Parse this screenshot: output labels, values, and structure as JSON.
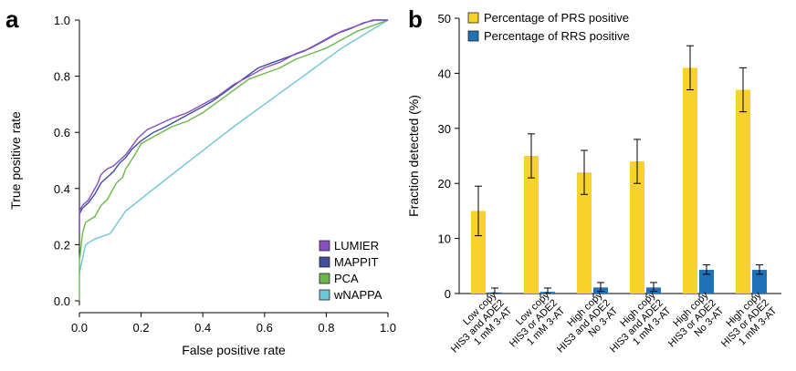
{
  "panels": {
    "a": {
      "letter": "a"
    },
    "b": {
      "letter": "b"
    }
  },
  "chart_data": [
    {
      "type": "line",
      "panel": "a",
      "xlabel": "False positive rate",
      "ylabel": "True positive rate",
      "xlim": [
        0,
        1
      ],
      "ylim": [
        0,
        1
      ],
      "xticks": [
        "0.0",
        "0.2",
        "0.4",
        "0.6",
        "0.8",
        "1.0"
      ],
      "yticks": [
        "0.0",
        "0.2",
        "0.4",
        "0.6",
        "0.8",
        "1.0"
      ],
      "grid": false,
      "legend_position": "bottom-right",
      "series": [
        {
          "name": "LUMIER",
          "color": "#8a4fc0",
          "points": [
            [
              0,
              0.24
            ],
            [
              0,
              0.32
            ],
            [
              0.01,
              0.34
            ],
            [
              0.02,
              0.35
            ],
            [
              0.03,
              0.36
            ],
            [
              0.04,
              0.38
            ],
            [
              0.05,
              0.4
            ],
            [
              0.06,
              0.42
            ],
            [
              0.07,
              0.45
            ],
            [
              0.09,
              0.47
            ],
            [
              0.11,
              0.48
            ],
            [
              0.13,
              0.5
            ],
            [
              0.15,
              0.52
            ],
            [
              0.17,
              0.55
            ],
            [
              0.19,
              0.58
            ],
            [
              0.22,
              0.61
            ],
            [
              0.26,
              0.63
            ],
            [
              0.3,
              0.65
            ],
            [
              0.35,
              0.67
            ],
            [
              0.4,
              0.7
            ],
            [
              0.45,
              0.73
            ],
            [
              0.5,
              0.77
            ],
            [
              0.55,
              0.8
            ],
            [
              0.6,
              0.83
            ],
            [
              0.65,
              0.85
            ],
            [
              0.7,
              0.88
            ],
            [
              0.75,
              0.9
            ],
            [
              0.8,
              0.93
            ],
            [
              0.85,
              0.96
            ],
            [
              0.9,
              0.98
            ],
            [
              0.95,
              1.0
            ],
            [
              1.0,
              1.0
            ]
          ]
        },
        {
          "name": "MAPPIT",
          "color": "#3f4e9e",
          "points": [
            [
              0,
              0.24
            ],
            [
              0,
              0.31
            ],
            [
              0.01,
              0.33
            ],
            [
              0.03,
              0.35
            ],
            [
              0.05,
              0.38
            ],
            [
              0.07,
              0.42
            ],
            [
              0.09,
              0.44
            ],
            [
              0.11,
              0.46
            ],
            [
              0.13,
              0.49
            ],
            [
              0.15,
              0.51
            ],
            [
              0.17,
              0.54
            ],
            [
              0.2,
              0.57
            ],
            [
              0.24,
              0.6
            ],
            [
              0.28,
              0.62
            ],
            [
              0.33,
              0.65
            ],
            [
              0.38,
              0.68
            ],
            [
              0.43,
              0.71
            ],
            [
              0.48,
              0.75
            ],
            [
              0.53,
              0.79
            ],
            [
              0.58,
              0.83
            ],
            [
              0.63,
              0.85
            ],
            [
              0.68,
              0.87
            ],
            [
              0.73,
              0.89
            ],
            [
              0.78,
              0.92
            ],
            [
              0.83,
              0.95
            ],
            [
              0.88,
              0.97
            ],
            [
              0.92,
              0.99
            ],
            [
              0.96,
              1.0
            ],
            [
              1.0,
              1.0
            ]
          ]
        },
        {
          "name": "PCA",
          "color": "#6ab84a",
          "points": [
            [
              0,
              0.0
            ],
            [
              0,
              0.14
            ],
            [
              0.01,
              0.24
            ],
            [
              0.02,
              0.28
            ],
            [
              0.05,
              0.3
            ],
            [
              0.07,
              0.34
            ],
            [
              0.09,
              0.36
            ],
            [
              0.1,
              0.38
            ],
            [
              0.12,
              0.42
            ],
            [
              0.14,
              0.44
            ],
            [
              0.15,
              0.47
            ],
            [
              0.18,
              0.52
            ],
            [
              0.2,
              0.56
            ],
            [
              0.25,
              0.59
            ],
            [
              0.3,
              0.62
            ],
            [
              0.35,
              0.64
            ],
            [
              0.4,
              0.67
            ],
            [
              0.45,
              0.71
            ],
            [
              0.5,
              0.75
            ],
            [
              0.55,
              0.79
            ],
            [
              0.6,
              0.81
            ],
            [
              0.65,
              0.83
            ],
            [
              0.7,
              0.86
            ],
            [
              0.75,
              0.88
            ],
            [
              0.8,
              0.9
            ],
            [
              0.85,
              0.93
            ],
            [
              0.9,
              0.96
            ],
            [
              0.95,
              0.98
            ],
            [
              1.0,
              1.0
            ]
          ]
        },
        {
          "name": "wNAPPA",
          "color": "#6cc6d8",
          "points": [
            [
              0,
              0.1
            ],
            [
              0.02,
              0.2
            ],
            [
              0.05,
              0.22
            ],
            [
              0.1,
              0.24
            ],
            [
              0.15,
              0.32
            ],
            [
              0.3,
              0.45
            ],
            [
              0.5,
              0.62
            ],
            [
              0.7,
              0.78
            ],
            [
              0.85,
              0.9
            ],
            [
              1.0,
              1.0
            ]
          ]
        }
      ]
    },
    {
      "type": "bar",
      "panel": "b",
      "ylabel": "Fraction detected (%)",
      "ylim": [
        0,
        50
      ],
      "yticks": [
        "0",
        "10",
        "20",
        "30",
        "40",
        "50"
      ],
      "grid": false,
      "legend_position": "top-left",
      "categories": [
        [
          "Low copy",
          "HIS3 and ADE2",
          "1 mM 3-AT"
        ],
        [
          "Low copy",
          "HIS3 or ADE2",
          "1 mM 3-AT"
        ],
        [
          "High copy",
          "HIS3 and ADE2",
          "No 3-AT"
        ],
        [
          "High copy",
          "HIS3 and ADE2",
          "1 mM 3-AT"
        ],
        [
          "High copy",
          "HIS3 or ADE2",
          "No 3-AT"
        ],
        [
          "High copy",
          "HIS3 or ADE2",
          "1 mM 3-AT"
        ]
      ],
      "series": [
        {
          "name": "Percentage of PRS positive",
          "color": "#f7d22a",
          "values": [
            15,
            25,
            22,
            24,
            41,
            37
          ],
          "err_low": [
            10.5,
            21,
            18,
            20,
            37,
            33
          ],
          "err_high": [
            19.5,
            29,
            26,
            28,
            45,
            41
          ]
        },
        {
          "name": "Percentage of RRS positive",
          "color": "#1f72b8",
          "values": [
            0.2,
            0.3,
            1.1,
            1.1,
            4.3,
            4.3
          ],
          "err_low": [
            0,
            0,
            0.4,
            0.4,
            3.5,
            3.5
          ],
          "err_high": [
            1,
            1,
            2,
            2,
            5.2,
            5.2
          ]
        }
      ]
    }
  ]
}
